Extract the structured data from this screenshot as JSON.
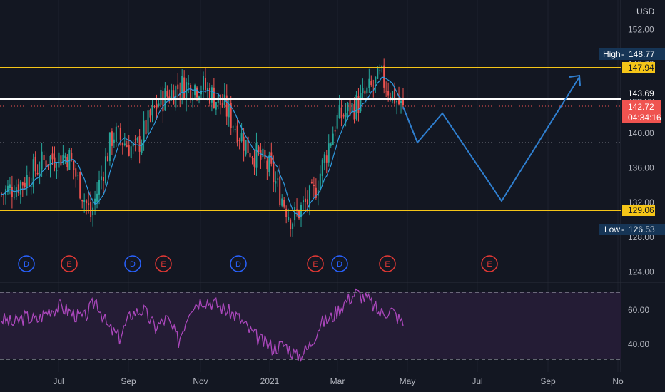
{
  "currency": "USD",
  "price_axis": {
    "ticks": [
      {
        "value": 152,
        "label": "152.00"
      },
      {
        "value": 148,
        "label": "148.00"
      },
      {
        "value": 144,
        "label": "144.00"
      },
      {
        "value": 140,
        "label": "140.00"
      },
      {
        "value": 136,
        "label": "136.00"
      },
      {
        "value": 132,
        "label": "132.00"
      },
      {
        "value": 128,
        "label": "128.00"
      },
      {
        "value": 124,
        "label": "124.00"
      }
    ],
    "range": [
      122.8,
      155.4
    ]
  },
  "time_axis": {
    "labels": [
      {
        "label": "Jul",
        "index": 0
      },
      {
        "label": "Sep",
        "index": 1
      },
      {
        "label": "Nov",
        "index": 2
      },
      {
        "label": "2021",
        "index": 3
      },
      {
        "label": "Mar",
        "index": 4
      },
      {
        "label": "May",
        "index": 5
      },
      {
        "label": "Jul",
        "index": 6
      },
      {
        "label": "Sep",
        "index": 7
      },
      {
        "label": "No",
        "index": 8
      }
    ]
  },
  "price_tags": {
    "high": {
      "label": "High",
      "value": "148.77"
    },
    "resistance": {
      "value": "147.94"
    },
    "level": {
      "value": "143.69"
    },
    "last": {
      "value": "142.72",
      "countdown": "04:34:16"
    },
    "support": {
      "value": "129.06"
    },
    "low": {
      "label": "Low",
      "value": "126.53"
    }
  },
  "events": [
    {
      "type": "D",
      "label": "D"
    },
    {
      "type": "E",
      "label": "E"
    },
    {
      "type": "D",
      "label": "D"
    },
    {
      "type": "E",
      "label": "E"
    },
    {
      "type": "D",
      "label": "D"
    },
    {
      "type": "E",
      "label": "E"
    },
    {
      "type": "D",
      "label": "D"
    },
    {
      "type": "E",
      "label": "E"
    },
    {
      "type": "E",
      "label": "E"
    }
  ],
  "rsi": {
    "ticks": [
      {
        "value": 60,
        "label": "60.00"
      },
      {
        "value": 40,
        "label": "40.00"
      }
    ],
    "upper_band": 70,
    "lower_band": 30,
    "range": [
      24,
      76
    ]
  },
  "colors": {
    "background": "#131722",
    "up": "#26a69a",
    "down": "#ef5350",
    "support_resistance": "#f5c518",
    "projection": "#2f7fd0",
    "rsi_line": "#9c27b0",
    "rsi_band": "#2a1f3d",
    "dividend": "#2962ff",
    "earnings": "#e53935",
    "label_bg": "#163556"
  },
  "chart_data": {
    "type": "candlestick",
    "symbol_currency": "USD",
    "range_high": 148.77,
    "range_low": 126.53,
    "last_price": 142.72,
    "horizontal_levels": [
      147.94,
      143.69,
      129.06
    ],
    "close_path": [
      [
        "2020-06",
        133.0
      ],
      [
        "2020-07",
        134.5
      ],
      [
        "2020-08",
        137.0
      ],
      [
        "2020-09",
        137.5
      ],
      [
        "2020-09",
        130.5
      ],
      [
        "2020-10",
        140.0
      ],
      [
        "2020-11",
        138.0
      ],
      [
        "2020-11",
        143.5
      ],
      [
        "2020-12",
        145.5
      ],
      [
        "2021-01",
        145.5
      ],
      [
        "2021-01",
        143.0
      ],
      [
        "2021-02",
        138.5
      ],
      [
        "2021-02",
        136.0
      ],
      [
        "2021-03",
        130.0
      ],
      [
        "2021-03",
        133.0
      ],
      [
        "2021-03",
        141.5
      ],
      [
        "2021-04",
        143.5
      ],
      [
        "2021-04",
        146.5
      ],
      [
        "2021-04",
        142.7
      ]
    ],
    "projection_path": [
      [
        "2021-05",
        138.0
      ],
      [
        "2021-05",
        141.8
      ],
      [
        "2021-07",
        130.5
      ],
      [
        "2021-09",
        146.5
      ]
    ],
    "rsi_path": [
      55,
      52,
      56,
      54,
      60,
      62,
      58,
      55,
      66,
      50,
      44,
      58,
      60,
      50,
      55,
      42,
      62,
      66,
      64,
      60,
      56,
      48,
      42,
      38,
      40,
      33,
      38,
      52,
      56,
      64,
      70,
      66,
      58,
      60,
      52
    ],
    "ylim": [
      122.8,
      155.4
    ]
  }
}
